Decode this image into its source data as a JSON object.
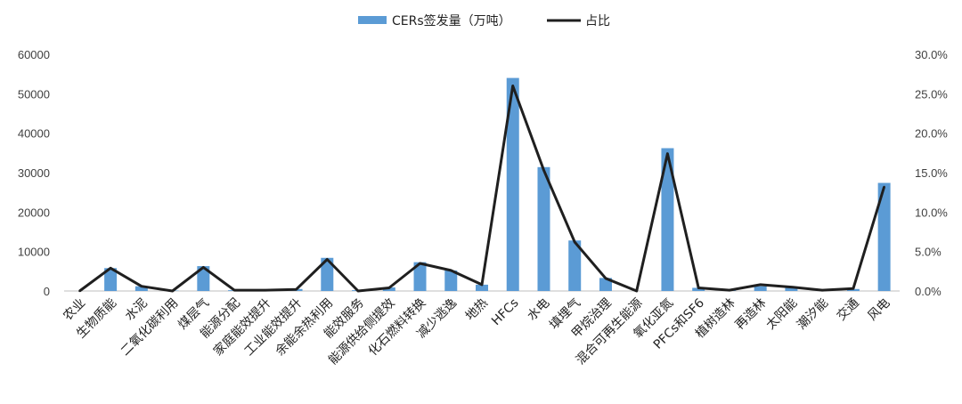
{
  "chart_data": {
    "type": "bar+line",
    "legend": {
      "bar_label": "CERs签发量（万吨）",
      "line_label": "占比",
      "position": "top"
    },
    "colors": {
      "bar": "#5b9bd5",
      "line": "#1f1f1f",
      "axis": "#bfbfbf"
    },
    "categories": [
      "农业",
      "生物质能",
      "水泥",
      "二氧化碳利用",
      "煤层气",
      "能源分配",
      "家庭能效提升",
      "工业能效提升",
      "余能余热利用",
      "能效服务",
      "能源供给侧提效",
      "化石燃料转换",
      "减少逃逸",
      "地热",
      "HFCs",
      "水电",
      "填埋气",
      "甲烷治理",
      "混合可再生能源",
      "氧化亚氮",
      "PFCs和SF6",
      "植树造林",
      "再造林",
      "太阳能",
      "潮汐能",
      "交通",
      "风电"
    ],
    "series": [
      {
        "name": "CERs签发量（万吨）",
        "type": "bar",
        "axis": "left",
        "values": [
          0,
          5800,
          1200,
          100,
          6300,
          200,
          200,
          500,
          8400,
          200,
          900,
          7300,
          5200,
          1600,
          54000,
          31400,
          12800,
          3300,
          0,
          36200,
          800,
          400,
          1200,
          900,
          300,
          500,
          27400
        ]
      },
      {
        "name": "占比",
        "type": "line",
        "axis": "right",
        "values": [
          0.0,
          2.9,
          0.6,
          0.0,
          3.0,
          0.1,
          0.1,
          0.2,
          4.0,
          0.0,
          0.4,
          3.5,
          2.6,
          0.8,
          26.0,
          15.3,
          6.2,
          1.6,
          0.0,
          17.4,
          0.4,
          0.1,
          0.8,
          0.5,
          0.1,
          0.3,
          13.2
        ]
      }
    ],
    "y_left": {
      "min": 0,
      "max": 60000,
      "ticks": [
        "0",
        "10000",
        "20000",
        "30000",
        "40000",
        "50000",
        "60000"
      ]
    },
    "y_right": {
      "min": 0,
      "max": 30,
      "ticks": [
        "0.0%",
        "5.0%",
        "10.0%",
        "15.0%",
        "20.0%",
        "25.0%",
        "30.0%"
      ]
    },
    "grid": false
  }
}
